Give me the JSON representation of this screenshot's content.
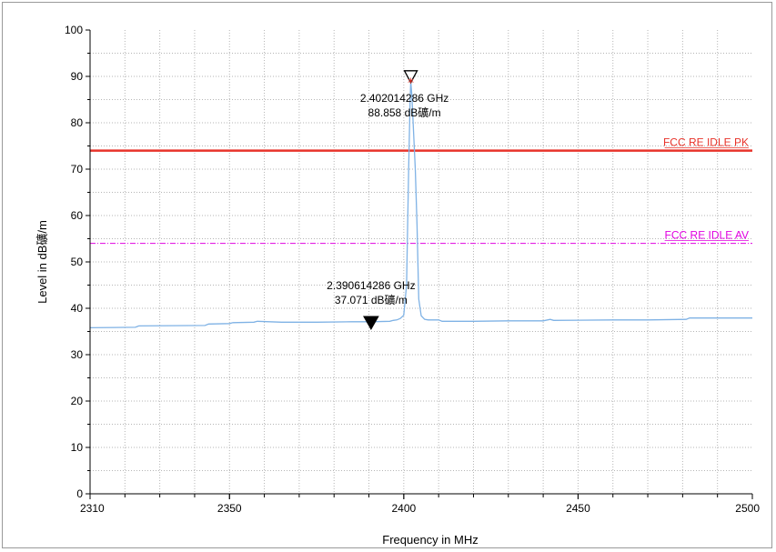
{
  "chart_data": {
    "type": "line",
    "title": "",
    "xlabel": "Frequency in MHz",
    "ylabel": "Level in dB礦/m",
    "xlim": [
      2310,
      2500
    ],
    "ylim": [
      0,
      100
    ],
    "x_ticks": [
      2310,
      2350,
      2400,
      2450,
      2500
    ],
    "y_ticks": [
      0,
      10,
      20,
      30,
      40,
      50,
      60,
      70,
      80,
      90,
      100
    ],
    "grid": true,
    "series": [
      {
        "name": "",
        "color": "#7fb2e5",
        "x": [
          2310,
          2323,
          2324,
          2343,
          2344,
          2350,
          2351,
          2357,
          2358,
          2365,
          2375,
          2385,
          2390.6,
          2396,
          2397,
          2398,
          2399,
          2400,
          2400.8,
          2401.4,
          2401.8,
          2402.0,
          2402.3,
          2402.8,
          2403.3,
          2403.8,
          2404.3,
          2405,
          2406,
          2407,
          2410,
          2411,
          2420,
          2430,
          2440,
          2442,
          2443,
          2460,
          2470,
          2481,
          2482,
          2490,
          2500
        ],
        "y": [
          35.8,
          35.9,
          36.2,
          36.3,
          36.6,
          36.7,
          36.9,
          37.0,
          37.2,
          37.0,
          37.0,
          37.1,
          37.1,
          37.2,
          37.4,
          37.5,
          37.8,
          38.5,
          45,
          70,
          84,
          88.9,
          86,
          78,
          70,
          58,
          42,
          38.4,
          37.6,
          37.5,
          37.5,
          37.2,
          37.2,
          37.3,
          37.3,
          37.6,
          37.4,
          37.5,
          37.5,
          37.6,
          37.9,
          37.9,
          37.9
        ]
      }
    ],
    "limit_lines": [
      {
        "name": "FCC RE IDLE PK",
        "y": 74,
        "color": "#e8332a",
        "style": "solid"
      },
      {
        "name": "FCC RE IDLE AV",
        "y": 54,
        "color": "#e000e0",
        "style": "dash-dot"
      }
    ],
    "markers": [
      {
        "x": 2402.014286,
        "y": 88.858,
        "frequency_text": "2.402014286 GHz",
        "level_text": "88.858 dB礦/m",
        "symbol": "hollow-triangle"
      },
      {
        "x": 2390.614286,
        "y": 37.071,
        "frequency_text": "2.390614286 GHz",
        "level_text": "37.071 dB礦/m",
        "symbol": "filled-triangle"
      }
    ]
  }
}
